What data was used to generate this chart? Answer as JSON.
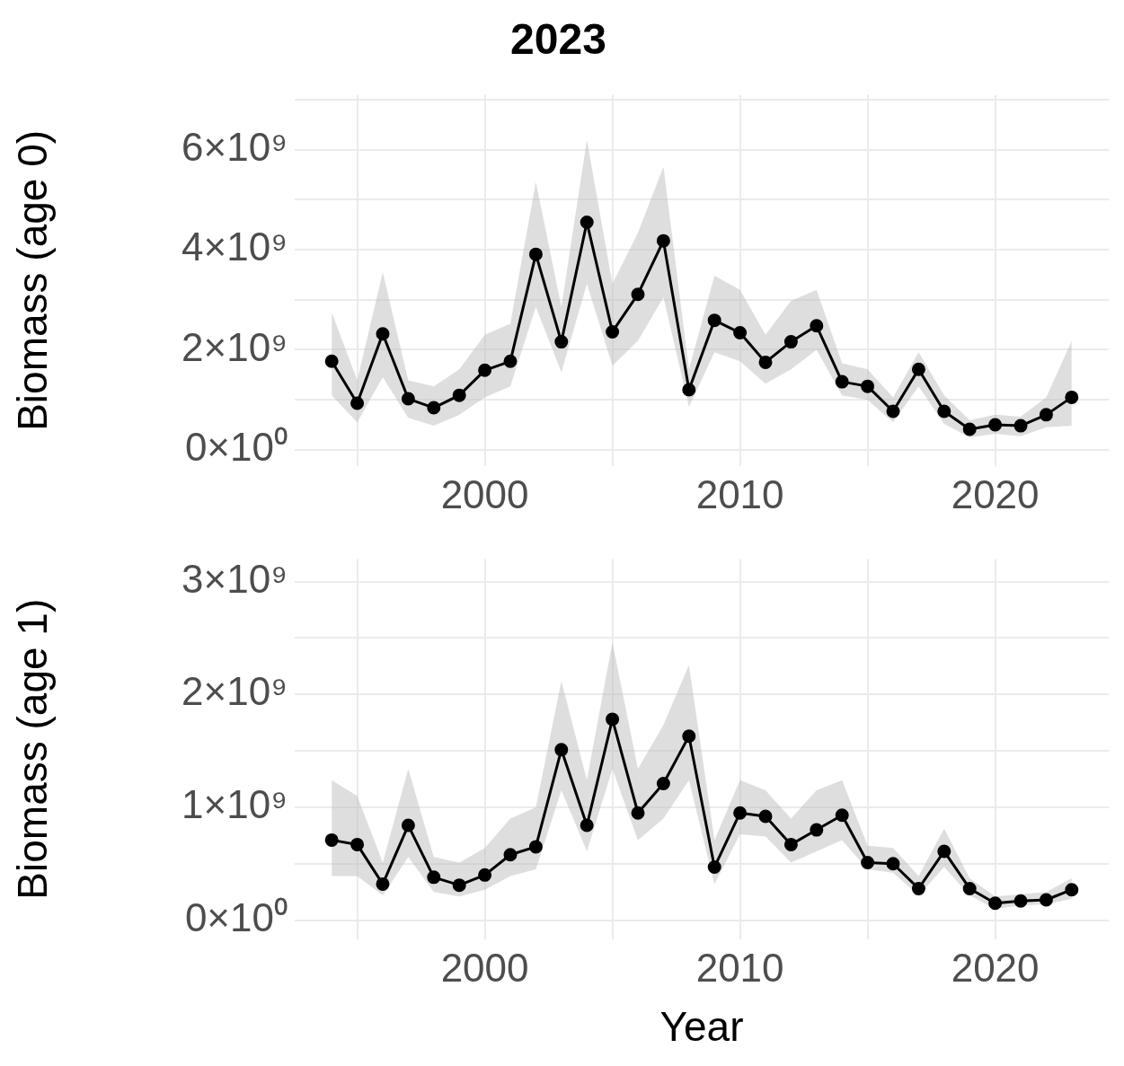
{
  "chart_data": [
    {
      "type": "line",
      "title": "2023",
      "ylabel": "Biomass (age 0)",
      "marker": "circle",
      "grid": true,
      "x": [
        1994,
        1995,
        1996,
        1997,
        1998,
        1999,
        2000,
        2001,
        2002,
        2003,
        2004,
        2005,
        2006,
        2007,
        2008,
        2009,
        2010,
        2011,
        2012,
        2013,
        2014,
        2015,
        2016,
        2017,
        2018,
        2019,
        2020,
        2021,
        2022,
        2023
      ],
      "series": [
        {
          "color": "#000000",
          "values": [
            1770000000.0,
            930000000.0,
            2320000000.0,
            1020000000.0,
            840000000.0,
            1090000000.0,
            1590000000.0,
            1770000000.0,
            3910000000.0,
            2160000000.0,
            4550000000.0,
            2360000000.0,
            3110000000.0,
            4180000000.0,
            1200000000.0,
            2590000000.0,
            2340000000.0,
            1750000000.0,
            2160000000.0,
            2480000000.0,
            1360000000.0,
            1270000000.0,
            770000000.0,
            1610000000.0,
            770000000.0,
            410000000.0,
            500000000.0,
            480000000.0,
            700000000.0,
            1050000000.0
          ],
          "lower": [
            1090000000.0,
            550000000.0,
            1450000000.0,
            640000000.0,
            480000000.0,
            700000000.0,
            1050000000.0,
            1270000000.0,
            2860000000.0,
            1550000000.0,
            3320000000.0,
            1680000000.0,
            2180000000.0,
            3050000000.0,
            860000000.0,
            1950000000.0,
            1770000000.0,
            1320000000.0,
            1610000000.0,
            2000000000.0,
            1090000000.0,
            1000000000.0,
            550000000.0,
            1270000000.0,
            520000000.0,
            250000000.0,
            320000000.0,
            270000000.0,
            450000000.0,
            480000000.0
          ],
          "upper": [
            2750000000.0,
            1390000000.0,
            3550000000.0,
            1390000000.0,
            1270000000.0,
            1610000000.0,
            2300000000.0,
            2520000000.0,
            5360000000.0,
            2860000000.0,
            6200000000.0,
            3320000000.0,
            4340000000.0,
            5660000000.0,
            1610000000.0,
            3480000000.0,
            3200000000.0,
            2300000000.0,
            2980000000.0,
            3200000000.0,
            1730000000.0,
            1610000000.0,
            1050000000.0,
            1950000000.0,
            1090000000.0,
            590000000.0,
            700000000.0,
            660000000.0,
            1050000000.0,
            2180000000.0
          ]
        }
      ],
      "xlim": [
        1992.55,
        2024.45
      ],
      "ylim": [
        -330000000.0,
        7100000000.0
      ],
      "xticks": [
        {
          "value": 1995,
          "label": null
        },
        2000,
        {
          "value": 2005,
          "label": null
        },
        2010,
        {
          "value": 2015,
          "label": null
        },
        2020
      ],
      "yticks": [
        {
          "value": 0,
          "label": "0×10⁰"
        },
        {
          "value": 1000000000.0,
          "label": null
        },
        {
          "value": 2000000000.0,
          "label": "2×10⁹"
        },
        {
          "value": 3000000000.0,
          "label": null
        },
        {
          "value": 4000000000.0,
          "label": "4×10⁹"
        },
        {
          "value": 5000000000.0,
          "label": null
        },
        {
          "value": 6000000000.0,
          "label": "6×10⁹"
        },
        {
          "value": 7000000000.0,
          "label": null
        }
      ]
    },
    {
      "type": "line",
      "xlabel": "Year",
      "ylabel": "Biomass (age 1)",
      "marker": "circle",
      "grid": true,
      "x": [
        1994,
        1995,
        1996,
        1997,
        1998,
        1999,
        2000,
        2001,
        2002,
        2003,
        2004,
        2005,
        2006,
        2007,
        2008,
        2009,
        2010,
        2011,
        2012,
        2013,
        2014,
        2015,
        2016,
        2017,
        2018,
        2019,
        2020,
        2021,
        2022,
        2023
      ],
      "series": [
        {
          "color": "#000000",
          "values": [
            710000000.0,
            670000000.0,
            320000000.0,
            840000000.0,
            380000000.0,
            310000000.0,
            400000000.0,
            580000000.0,
            650000000.0,
            1510000000.0,
            840000000.0,
            1780000000.0,
            950000000.0,
            1210000000.0,
            1630000000.0,
            470000000.0,
            950000000.0,
            920000000.0,
            670000000.0,
            800000000.0,
            930000000.0,
            510000000.0,
            500000000.0,
            280000000.0,
            610000000.0,
            280000000.0,
            150000000.0,
            170000000.0,
            180000000.0,
            270000000.0
          ],
          "lower": [
            390000000.0,
            390000000.0,
            220000000.0,
            560000000.0,
            250000000.0,
            210000000.0,
            270000000.0,
            390000000.0,
            450000000.0,
            1150000000.0,
            610000000.0,
            1340000000.0,
            710000000.0,
            900000000.0,
            1240000000.0,
            320000000.0,
            760000000.0,
            740000000.0,
            510000000.0,
            610000000.0,
            710000000.0,
            450000000.0,
            420000000.0,
            220000000.0,
            470000000.0,
            220000000.0,
            100000000.0,
            130000000.0,
            140000000.0,
            190000000.0
          ],
          "upper": [
            1240000000.0,
            1100000000.0,
            510000000.0,
            1340000000.0,
            560000000.0,
            510000000.0,
            640000000.0,
            900000000.0,
            1000000000.0,
            2120000000.0,
            1240000000.0,
            2460000000.0,
            1340000000.0,
            1730000000.0,
            2260000000.0,
            710000000.0,
            1240000000.0,
            1150000000.0,
            900000000.0,
            1150000000.0,
            1240000000.0,
            660000000.0,
            640000000.0,
            390000000.0,
            810000000.0,
            370000000.0,
            210000000.0,
            230000000.0,
            250000000.0,
            370000000.0
          ]
        }
      ],
      "xlim": [
        1992.55,
        2024.45
      ],
      "ylim": [
        -170000000.0,
        3200000000.0
      ],
      "xticks": [
        {
          "value": 1995,
          "label": null
        },
        2000,
        {
          "value": 2005,
          "label": null
        },
        2010,
        {
          "value": 2015,
          "label": null
        },
        2020
      ],
      "yticks": [
        {
          "value": 0,
          "label": "0×10⁰"
        },
        {
          "value": 500000000.0,
          "label": null
        },
        {
          "value": 1000000000.0,
          "label": "1×10⁹"
        },
        {
          "value": 1500000000.0,
          "label": null
        },
        {
          "value": 2000000000.0,
          "label": "2×10⁹"
        },
        {
          "value": 2500000000.0,
          "label": null
        },
        {
          "value": 3000000000.0,
          "label": "3×10⁹"
        }
      ]
    }
  ]
}
